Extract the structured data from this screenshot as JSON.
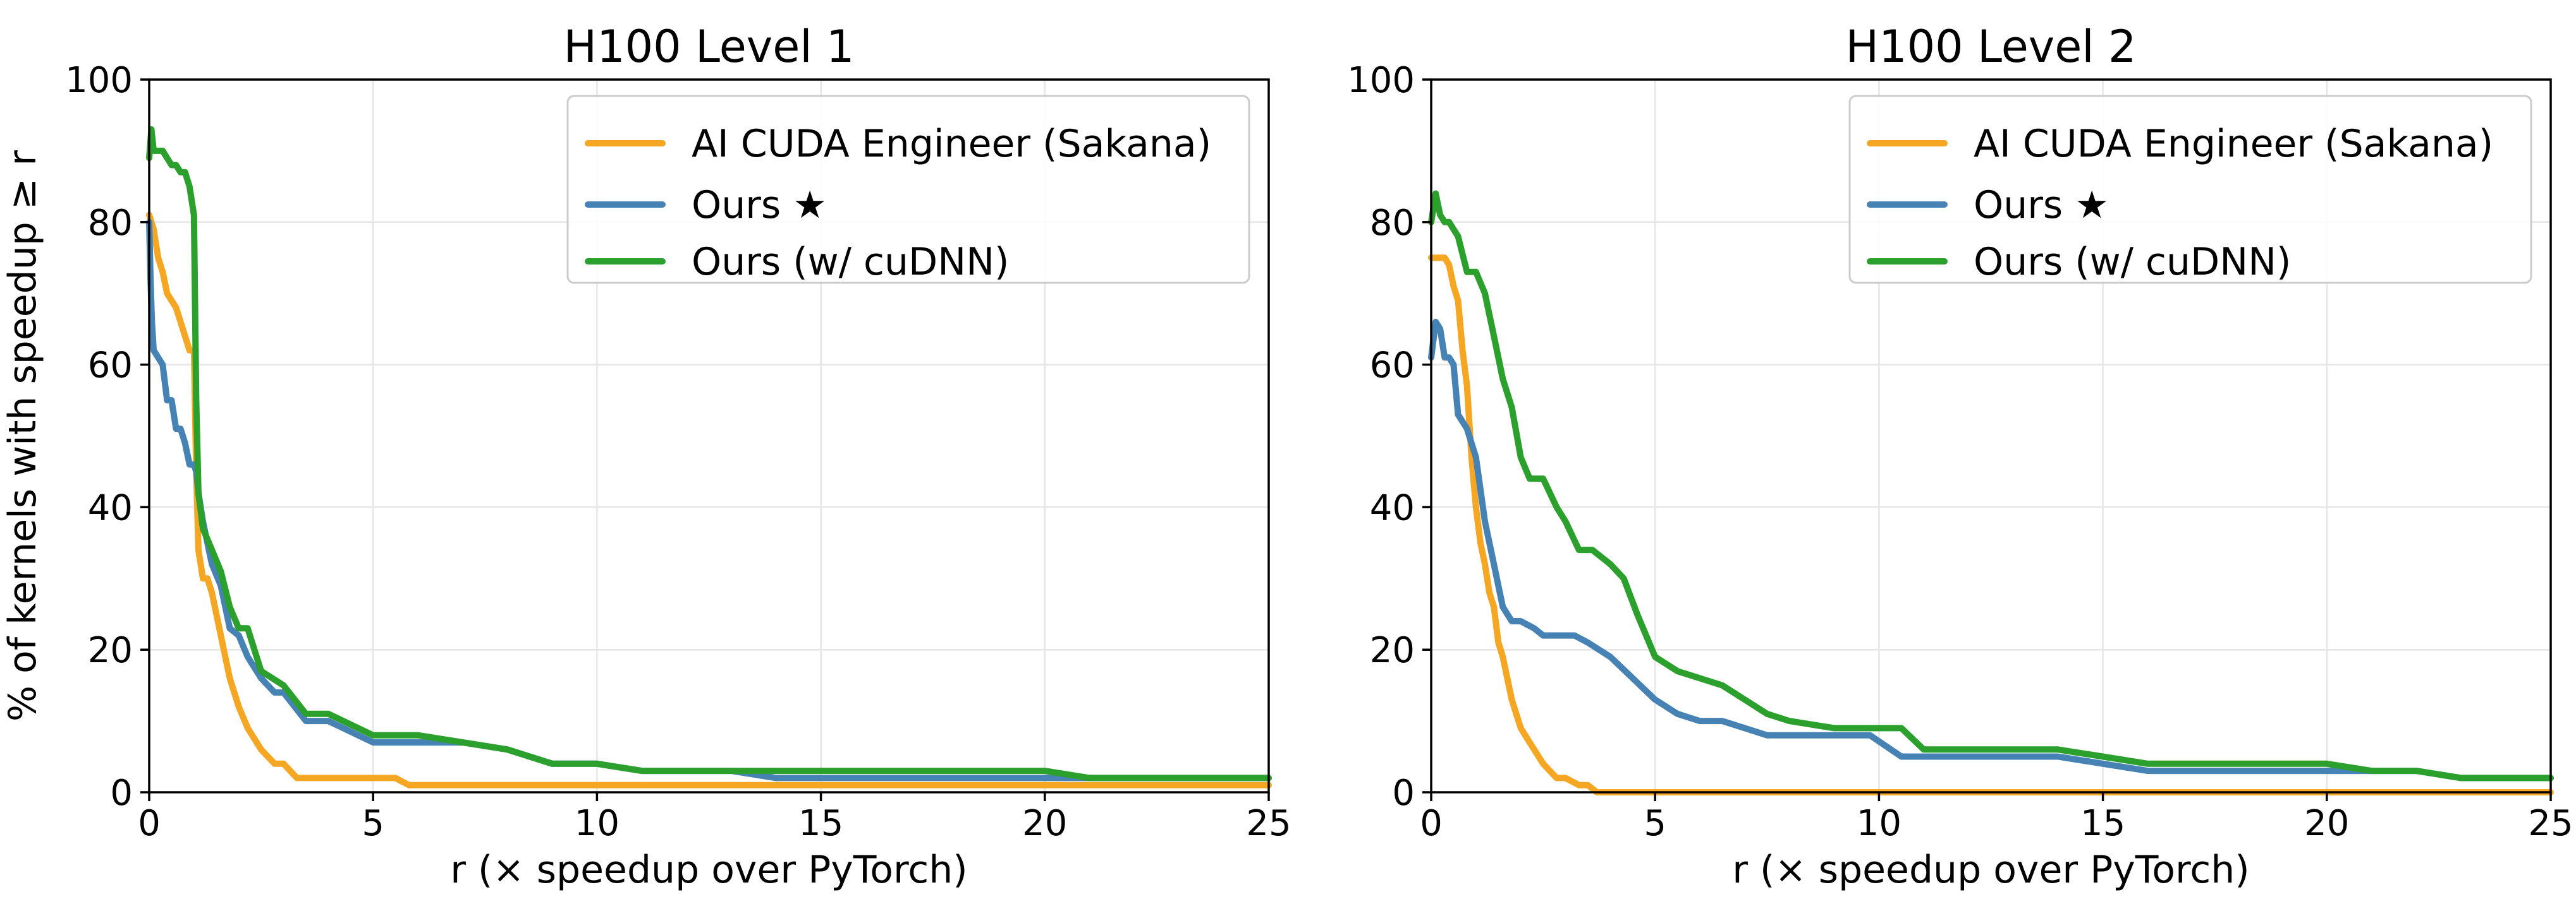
{
  "chart_data": [
    {
      "type": "line",
      "title": "H100 Level 1",
      "xlabel": "r (× speedup over PyTorch)",
      "ylabel": "% of kernels with speedup ≥ r",
      "xlim": [
        0,
        25
      ],
      "ylim": [
        0,
        100
      ],
      "xticks": [
        0,
        5,
        10,
        15,
        20,
        25
      ],
      "yticks": [
        0,
        20,
        40,
        60,
        80,
        100
      ],
      "grid": true,
      "legend_position": "top-right",
      "series": [
        {
          "name": "AI CUDA Engineer (Sakana)",
          "color": "#f5a623",
          "x": [
            0,
            0.05,
            0.1,
            0.15,
            0.2,
            0.3,
            0.4,
            0.5,
            0.6,
            0.7,
            0.8,
            0.9,
            1.0,
            1.05,
            1.1,
            1.2,
            1.3,
            1.4,
            1.5,
            1.6,
            1.8,
            2.0,
            2.2,
            2.5,
            2.8,
            3.0,
            3.3,
            3.5,
            4.0,
            5.0,
            5.5,
            5.8,
            6.0,
            8.0,
            10.0,
            15.0,
            20.0,
            25.0
          ],
          "y": [
            81,
            80,
            79,
            77,
            75,
            73,
            70,
            69,
            68,
            66,
            64,
            62,
            62,
            45,
            34,
            30,
            30,
            28,
            25,
            22,
            16,
            12,
            9,
            6,
            4,
            4,
            2,
            2,
            2,
            2,
            2,
            1,
            1,
            1,
            1,
            1,
            1,
            1
          ]
        },
        {
          "name": "Ours ★",
          "color": "#4682b4",
          "x": [
            0,
            0.03,
            0.06,
            0.1,
            0.2,
            0.3,
            0.4,
            0.5,
            0.6,
            0.7,
            0.8,
            0.9,
            1.0,
            1.05,
            1.1,
            1.2,
            1.4,
            1.6,
            1.8,
            2.0,
            2.2,
            2.5,
            2.8,
            3.0,
            3.5,
            4.0,
            5.0,
            6.0,
            7.0,
            8.0,
            9.0,
            10.0,
            11.0,
            12.0,
            13.0,
            14.0,
            20.0,
            21.0,
            25.0
          ],
          "y": [
            80,
            72,
            66,
            62,
            61,
            60,
            55,
            55,
            51,
            51,
            49,
            46,
            46,
            45,
            42,
            38,
            32,
            29,
            23,
            22,
            19,
            16,
            14,
            14,
            10,
            10,
            7,
            7,
            7,
            6,
            4,
            4,
            3,
            3,
            3,
            2,
            2,
            2,
            2
          ]
        },
        {
          "name": "Ours (w/ cuDNN)",
          "color": "#2ca02c",
          "x": [
            0,
            0.05,
            0.1,
            0.2,
            0.3,
            0.4,
            0.5,
            0.6,
            0.7,
            0.8,
            0.9,
            1.0,
            1.05,
            1.1,
            1.2,
            1.4,
            1.6,
            1.8,
            2.0,
            2.2,
            2.5,
            3.0,
            3.5,
            4.0,
            5.0,
            6.0,
            7.0,
            8.0,
            9.0,
            10.0,
            11.0,
            12.0,
            19.0,
            20.0,
            21.0,
            25.0
          ],
          "y": [
            89,
            93,
            90,
            90,
            90,
            89,
            88,
            88,
            87,
            87,
            85,
            81,
            55,
            42,
            37,
            34,
            31,
            26,
            23,
            23,
            17,
            15,
            11,
            11,
            8,
            8,
            7,
            6,
            4,
            4,
            3,
            3,
            3,
            3,
            2,
            2
          ]
        }
      ]
    },
    {
      "type": "line",
      "title": "H100 Level 2",
      "xlabel": "r (× speedup over PyTorch)",
      "ylabel": "",
      "xlim": [
        0,
        25
      ],
      "ylim": [
        0,
        100
      ],
      "xticks": [
        0,
        5,
        10,
        15,
        20,
        25
      ],
      "yticks": [
        0,
        20,
        40,
        60,
        80,
        100
      ],
      "grid": true,
      "legend_position": "top-right",
      "series": [
        {
          "name": "AI CUDA Engineer (Sakana)",
          "color": "#f5a623",
          "x": [
            0,
            0.3,
            0.4,
            0.5,
            0.6,
            0.7,
            0.8,
            0.9,
            1.0,
            1.1,
            1.2,
            1.3,
            1.4,
            1.5,
            1.6,
            1.7,
            1.8,
            2.0,
            2.2,
            2.5,
            2.8,
            3.0,
            3.3,
            3.5,
            3.7,
            4.0,
            5.0,
            10.0,
            15.0,
            20.0,
            25.0
          ],
          "y": [
            75,
            75,
            74,
            71,
            69,
            62,
            57,
            47,
            40,
            35,
            32,
            28,
            26,
            21,
            19,
            16,
            13,
            9,
            7,
            4,
            2,
            2,
            1,
            1,
            0,
            0,
            0,
            0,
            0,
            0,
            0
          ]
        },
        {
          "name": "Ours ★",
          "color": "#4682b4",
          "x": [
            0,
            0.1,
            0.2,
            0.3,
            0.4,
            0.5,
            0.6,
            0.8,
            1.0,
            1.2,
            1.4,
            1.6,
            1.8,
            2.0,
            2.3,
            2.5,
            2.8,
            3.2,
            3.5,
            4.0,
            4.5,
            5.0,
            5.5,
            6.0,
            6.5,
            7.0,
            7.5,
            8.0,
            9.0,
            9.8,
            10.5,
            11.0,
            12.0,
            13.0,
            14.0,
            15.0,
            16.0,
            17.0,
            20.0,
            21.0,
            22.0,
            23.0,
            24.0,
            25.0
          ],
          "y": [
            61,
            66,
            65,
            61,
            61,
            60,
            53,
            51,
            47,
            38,
            32,
            26,
            24,
            24,
            23,
            22,
            22,
            22,
            21,
            19,
            16,
            13,
            11,
            10,
            10,
            9,
            8,
            8,
            8,
            8,
            5,
            5,
            5,
            5,
            5,
            4,
            3,
            3,
            3,
            3,
            3,
            2,
            2,
            2
          ]
        },
        {
          "name": "Ours (w/ cuDNN)",
          "color": "#2ca02c",
          "x": [
            0,
            0.1,
            0.2,
            0.3,
            0.4,
            0.5,
            0.6,
            0.8,
            1.0,
            1.2,
            1.4,
            1.6,
            1.8,
            2.0,
            2.2,
            2.5,
            2.8,
            3.0,
            3.3,
            3.6,
            4.0,
            4.3,
            4.6,
            5.0,
            5.5,
            6.0,
            6.5,
            7.0,
            7.5,
            8.0,
            9.0,
            9.8,
            10.5,
            11.0,
            12.0,
            13.0,
            14.0,
            15.0,
            16.0,
            17.0,
            18.0,
            19.0,
            20.0,
            21.0,
            22.0,
            23.0,
            24.0,
            25.0
          ],
          "y": [
            80,
            84,
            81,
            80,
            80,
            79,
            78,
            73,
            73,
            70,
            64,
            58,
            54,
            47,
            44,
            44,
            40,
            38,
            34,
            34,
            32,
            30,
            25,
            19,
            17,
            16,
            15,
            13,
            11,
            10,
            9,
            9,
            9,
            6,
            6,
            6,
            6,
            5,
            4,
            4,
            4,
            4,
            4,
            3,
            3,
            2,
            2,
            2
          ]
        }
      ]
    }
  ]
}
